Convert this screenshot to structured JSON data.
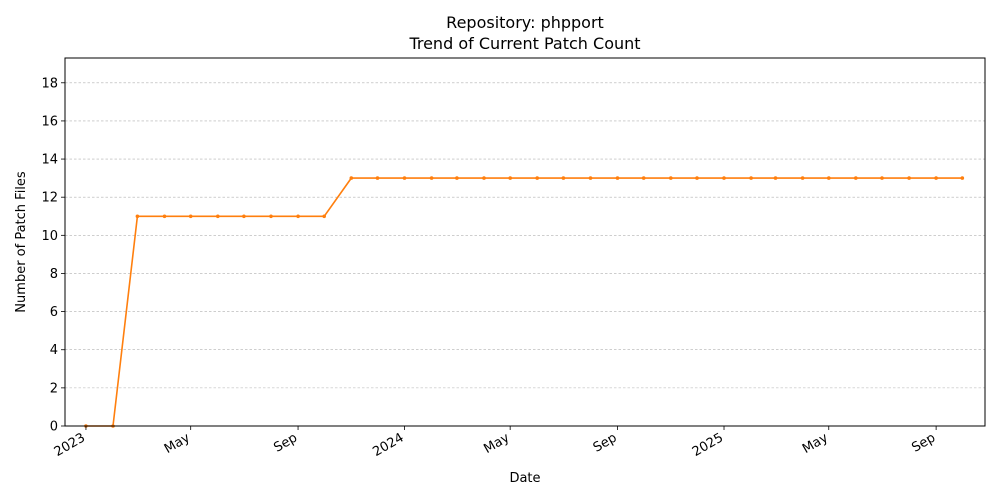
{
  "chart_data": {
    "type": "line",
    "title": "Repository: phpport",
    "subtitle": "Trend of Current Patch Count",
    "xlabel": "Date",
    "ylabel": "Number of Patch Files",
    "ylim": [
      0,
      19.3
    ],
    "xlim": [
      "2022-12-08",
      "2025-10-27"
    ],
    "grid": "y-dashed",
    "color": "#ff7f0e",
    "yticks": [
      0,
      2,
      4,
      6,
      8,
      10,
      12,
      14,
      16,
      18
    ],
    "xticks": [
      {
        "date": "2023-01-01",
        "label": "2023"
      },
      {
        "date": "2023-05-01",
        "label": "May"
      },
      {
        "date": "2023-09-01",
        "label": "Sep"
      },
      {
        "date": "2024-01-01",
        "label": "2024"
      },
      {
        "date": "2024-05-01",
        "label": "May"
      },
      {
        "date": "2024-09-01",
        "label": "Sep"
      },
      {
        "date": "2025-01-01",
        "label": "2025"
      },
      {
        "date": "2025-05-01",
        "label": "May"
      },
      {
        "date": "2025-09-01",
        "label": "Sep"
      }
    ],
    "x": [
      "2023-01-01",
      "2023-02-01",
      "2023-03-01",
      "2023-04-01",
      "2023-05-01",
      "2023-06-01",
      "2023-07-01",
      "2023-08-01",
      "2023-09-01",
      "2023-10-01",
      "2023-11-01",
      "2023-12-01",
      "2024-01-01",
      "2024-02-01",
      "2024-03-01",
      "2024-04-01",
      "2024-05-01",
      "2024-06-01",
      "2024-07-01",
      "2024-08-01",
      "2024-09-01",
      "2024-10-01",
      "2024-11-01",
      "2024-12-01",
      "2025-01-01",
      "2025-02-01",
      "2025-03-01",
      "2025-04-01",
      "2025-05-01",
      "2025-06-01",
      "2025-07-01",
      "2025-08-01",
      "2025-09-01",
      "2025-10-01"
    ],
    "values": [
      0,
      0,
      11,
      11,
      11,
      11,
      11,
      11,
      11,
      11,
      13,
      13,
      13,
      13,
      13,
      13,
      13,
      13,
      13,
      13,
      13,
      13,
      13,
      13,
      13,
      13,
      13,
      13,
      13,
      13,
      13,
      13,
      13,
      13
    ]
  }
}
